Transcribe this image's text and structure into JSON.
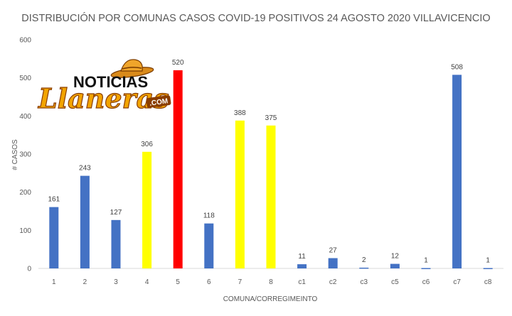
{
  "chart_data": {
    "type": "bar",
    "title": "DISTRIBUCIÓN POR COMUNAS CASOS COVID-19 POSITIVOS 24 AGOSTO 2020 VILLAVICENCIO",
    "xlabel": "COMUNA/CORREGIMEINTO",
    "ylabel": "# CASOS",
    "categories": [
      "1",
      "2",
      "3",
      "4",
      "5",
      "6",
      "7",
      "8",
      "c1",
      "c2",
      "c3",
      "c5",
      "c6",
      "c7",
      "c8"
    ],
    "values": [
      161,
      243,
      127,
      306,
      520,
      118,
      388,
      375,
      11,
      27,
      2,
      12,
      1,
      508,
      1
    ],
    "bar_colors": [
      "#4472c4",
      "#4472c4",
      "#4472c4",
      "#ffff00",
      "#ff0000",
      "#4472c4",
      "#ffff00",
      "#ffff00",
      "#4472c4",
      "#4472c4",
      "#4472c4",
      "#4472c4",
      "#4472c4",
      "#4472c4",
      "#4472c4"
    ],
    "ylim": [
      0,
      600
    ],
    "yticks": [
      0,
      100,
      200,
      300,
      400,
      500,
      600
    ],
    "grid": false,
    "legend": "none",
    "data_labels": true
  },
  "logo": {
    "line1": "NOTICIAS",
    "line2": "Llaneras",
    "suffix": ".COM",
    "icon": "sombrero-hat-icon"
  }
}
